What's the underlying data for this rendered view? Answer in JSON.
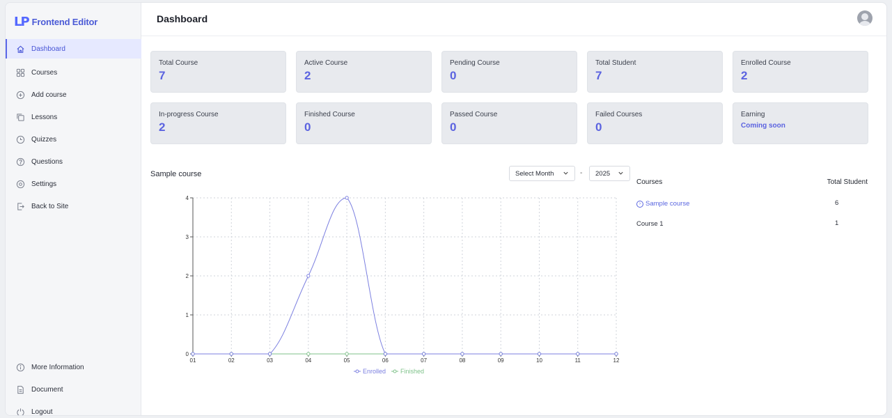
{
  "app": {
    "logo_mark": "LP",
    "logo_text": "Frontend Editor"
  },
  "sidebar": {
    "items": [
      {
        "label": "Dashboard",
        "icon": "home-icon",
        "active": true
      },
      {
        "label": "Courses",
        "icon": "grid-icon"
      },
      {
        "label": "Add course",
        "icon": "plus-circle-icon"
      },
      {
        "label": "Lessons",
        "icon": "copy-icon"
      },
      {
        "label": "Quizzes",
        "icon": "clock-icon"
      },
      {
        "label": "Questions",
        "icon": "question-circle-icon"
      },
      {
        "label": "Settings",
        "icon": "settings-icon"
      },
      {
        "label": "Back to Site",
        "icon": "exit-icon"
      }
    ],
    "bottom_items": [
      {
        "label": "More Information",
        "icon": "info-icon"
      },
      {
        "label": "Document",
        "icon": "document-icon"
      },
      {
        "label": "Logout",
        "icon": "power-icon"
      }
    ]
  },
  "header": {
    "title": "Dashboard"
  },
  "stats": [
    {
      "label": "Total Course",
      "value": "7"
    },
    {
      "label": "Active Course",
      "value": "2"
    },
    {
      "label": "Pending Course",
      "value": "0"
    },
    {
      "label": "Total Student",
      "value": "7"
    },
    {
      "label": "Enrolled Course",
      "value": "2"
    },
    {
      "label": "In-progress Course",
      "value": "2"
    },
    {
      "label": "Finished Course",
      "value": "0"
    },
    {
      "label": "Passed Course",
      "value": "0"
    },
    {
      "label": "Failed Courses",
      "value": "0"
    },
    {
      "label": "Earning",
      "value": "Coming soon"
    }
  ],
  "chart_section": {
    "title": "Sample course",
    "month_select": "Select Month",
    "separator": "-",
    "year_select": "2025"
  },
  "chart_data": {
    "type": "line",
    "categories": [
      "01",
      "02",
      "03",
      "04",
      "05",
      "06",
      "07",
      "08",
      "09",
      "10",
      "11",
      "12"
    ],
    "series": [
      {
        "name": "Enrolled",
        "color": "#7b7fe0",
        "values": [
          0,
          0,
          0,
          2,
          4,
          0,
          0,
          0,
          0,
          0,
          0,
          0
        ]
      },
      {
        "name": "Finished",
        "color": "#7fc28a",
        "values": [
          0,
          0,
          0,
          0,
          0,
          0,
          0,
          0,
          0,
          0,
          0,
          0
        ]
      }
    ],
    "ylim": [
      0,
      4
    ],
    "yticks": [
      0,
      1,
      2,
      3,
      4
    ],
    "grid": true,
    "legend": "bottom"
  },
  "courses_table": {
    "headers": {
      "course": "Courses",
      "students": "Total Student"
    },
    "rows": [
      {
        "name": "Sample course",
        "students": "6",
        "linked": true
      },
      {
        "name": "Course 1",
        "students": "1",
        "linked": false
      }
    ]
  }
}
